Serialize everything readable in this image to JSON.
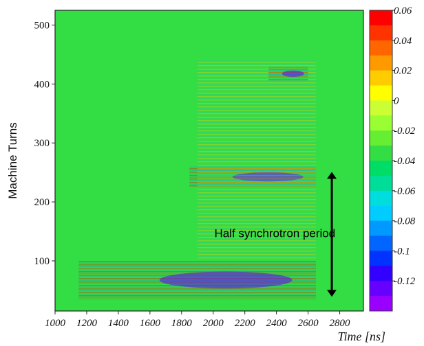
{
  "chart_data": {
    "type": "heatmap",
    "title": "",
    "xlabel": "Time [ns]",
    "ylabel": "Machine Turns",
    "xlim": [
      1000,
      2950
    ],
    "ylim": [
      15,
      525
    ],
    "xticks": [
      1000,
      1200,
      1400,
      1600,
      1800,
      2000,
      2200,
      2400,
      2600,
      2800
    ],
    "xtick_labels": [
      "1000",
      "1200",
      "1400",
      "1600",
      "1800",
      "2000",
      "2200",
      "2400",
      "2600",
      "2800"
    ],
    "yticks": [
      100,
      200,
      300,
      400,
      500
    ],
    "ytick_labels": [
      "100",
      "200",
      "300",
      "400",
      "500"
    ],
    "colorbar": {
      "min": -0.14,
      "max": 0.06,
      "ticks": [
        0.06,
        0.04,
        0.02,
        0,
        -0.02,
        -0.04,
        -0.06,
        -0.08,
        -0.1,
        -0.12
      ],
      "tick_labels": [
        "0.06",
        "0.04",
        "0.02",
        "0",
        "-0.02",
        "-0.04",
        "-0.06",
        "-0.08",
        "-0.1",
        "-0.12"
      ],
      "colors": [
        "#ff0000",
        "#ff3300",
        "#ff6600",
        "#ff9900",
        "#ffcc00",
        "#ffff00",
        "#ccff33",
        "#99ff33",
        "#66ee33",
        "#33dd44",
        "#00dd66",
        "#00dd99",
        "#00dddd",
        "#00ccff",
        "#0099ff",
        "#0066ff",
        "#0033ff",
        "#3300ff",
        "#6600ff",
        "#9900ff"
      ]
    },
    "background_value": -0.035,
    "signal_regions": [
      {
        "x": [
          1150,
          2650
        ],
        "y": [
          35,
          100
        ],
        "min_value": -0.12
      },
      {
        "x": [
          1850,
          2650
        ],
        "y": [
          225,
          260
        ],
        "min_value": -0.12
      },
      {
        "x": [
          1900,
          2650
        ],
        "y": [
          100,
          440
        ],
        "min_value": -0.06
      },
      {
        "x": [
          2350,
          2600
        ],
        "y": [
          405,
          430
        ],
        "min_value": -0.12
      }
    ],
    "annotations": [
      {
        "text": "Half synchrotron period",
        "x": 2390,
        "y": 140
      },
      {
        "type": "double-arrow",
        "x": 2750,
        "y": [
          45,
          245
        ]
      }
    ]
  }
}
